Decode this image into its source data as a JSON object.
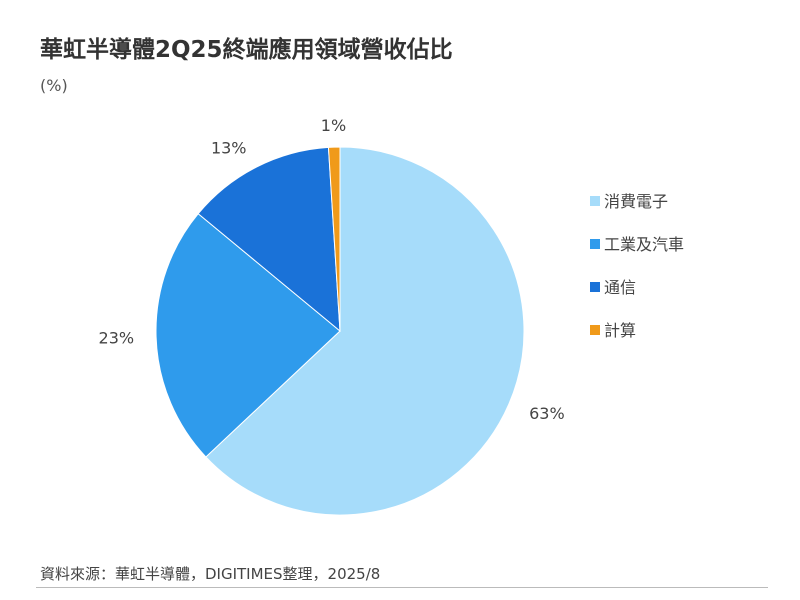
{
  "title": "華虹半導體2Q25終端應用領域營收佔比",
  "unit": "(%)",
  "source": "資料來源：華虹半導體，DIGITIMES整理，2025/8",
  "chart_data": {
    "type": "pie",
    "categories": [
      "消費電子",
      "工業及汽車",
      "通信",
      "計算"
    ],
    "values": [
      63,
      23,
      13,
      1
    ],
    "labels": [
      "63%",
      "23%",
      "13%",
      "1%"
    ],
    "colors": [
      "#a6dcfa",
      "#2f9bec",
      "#1a72d8",
      "#f09a1a"
    ],
    "start_angle_deg": 0,
    "direction": "clockwise",
    "legend_position": "right"
  }
}
